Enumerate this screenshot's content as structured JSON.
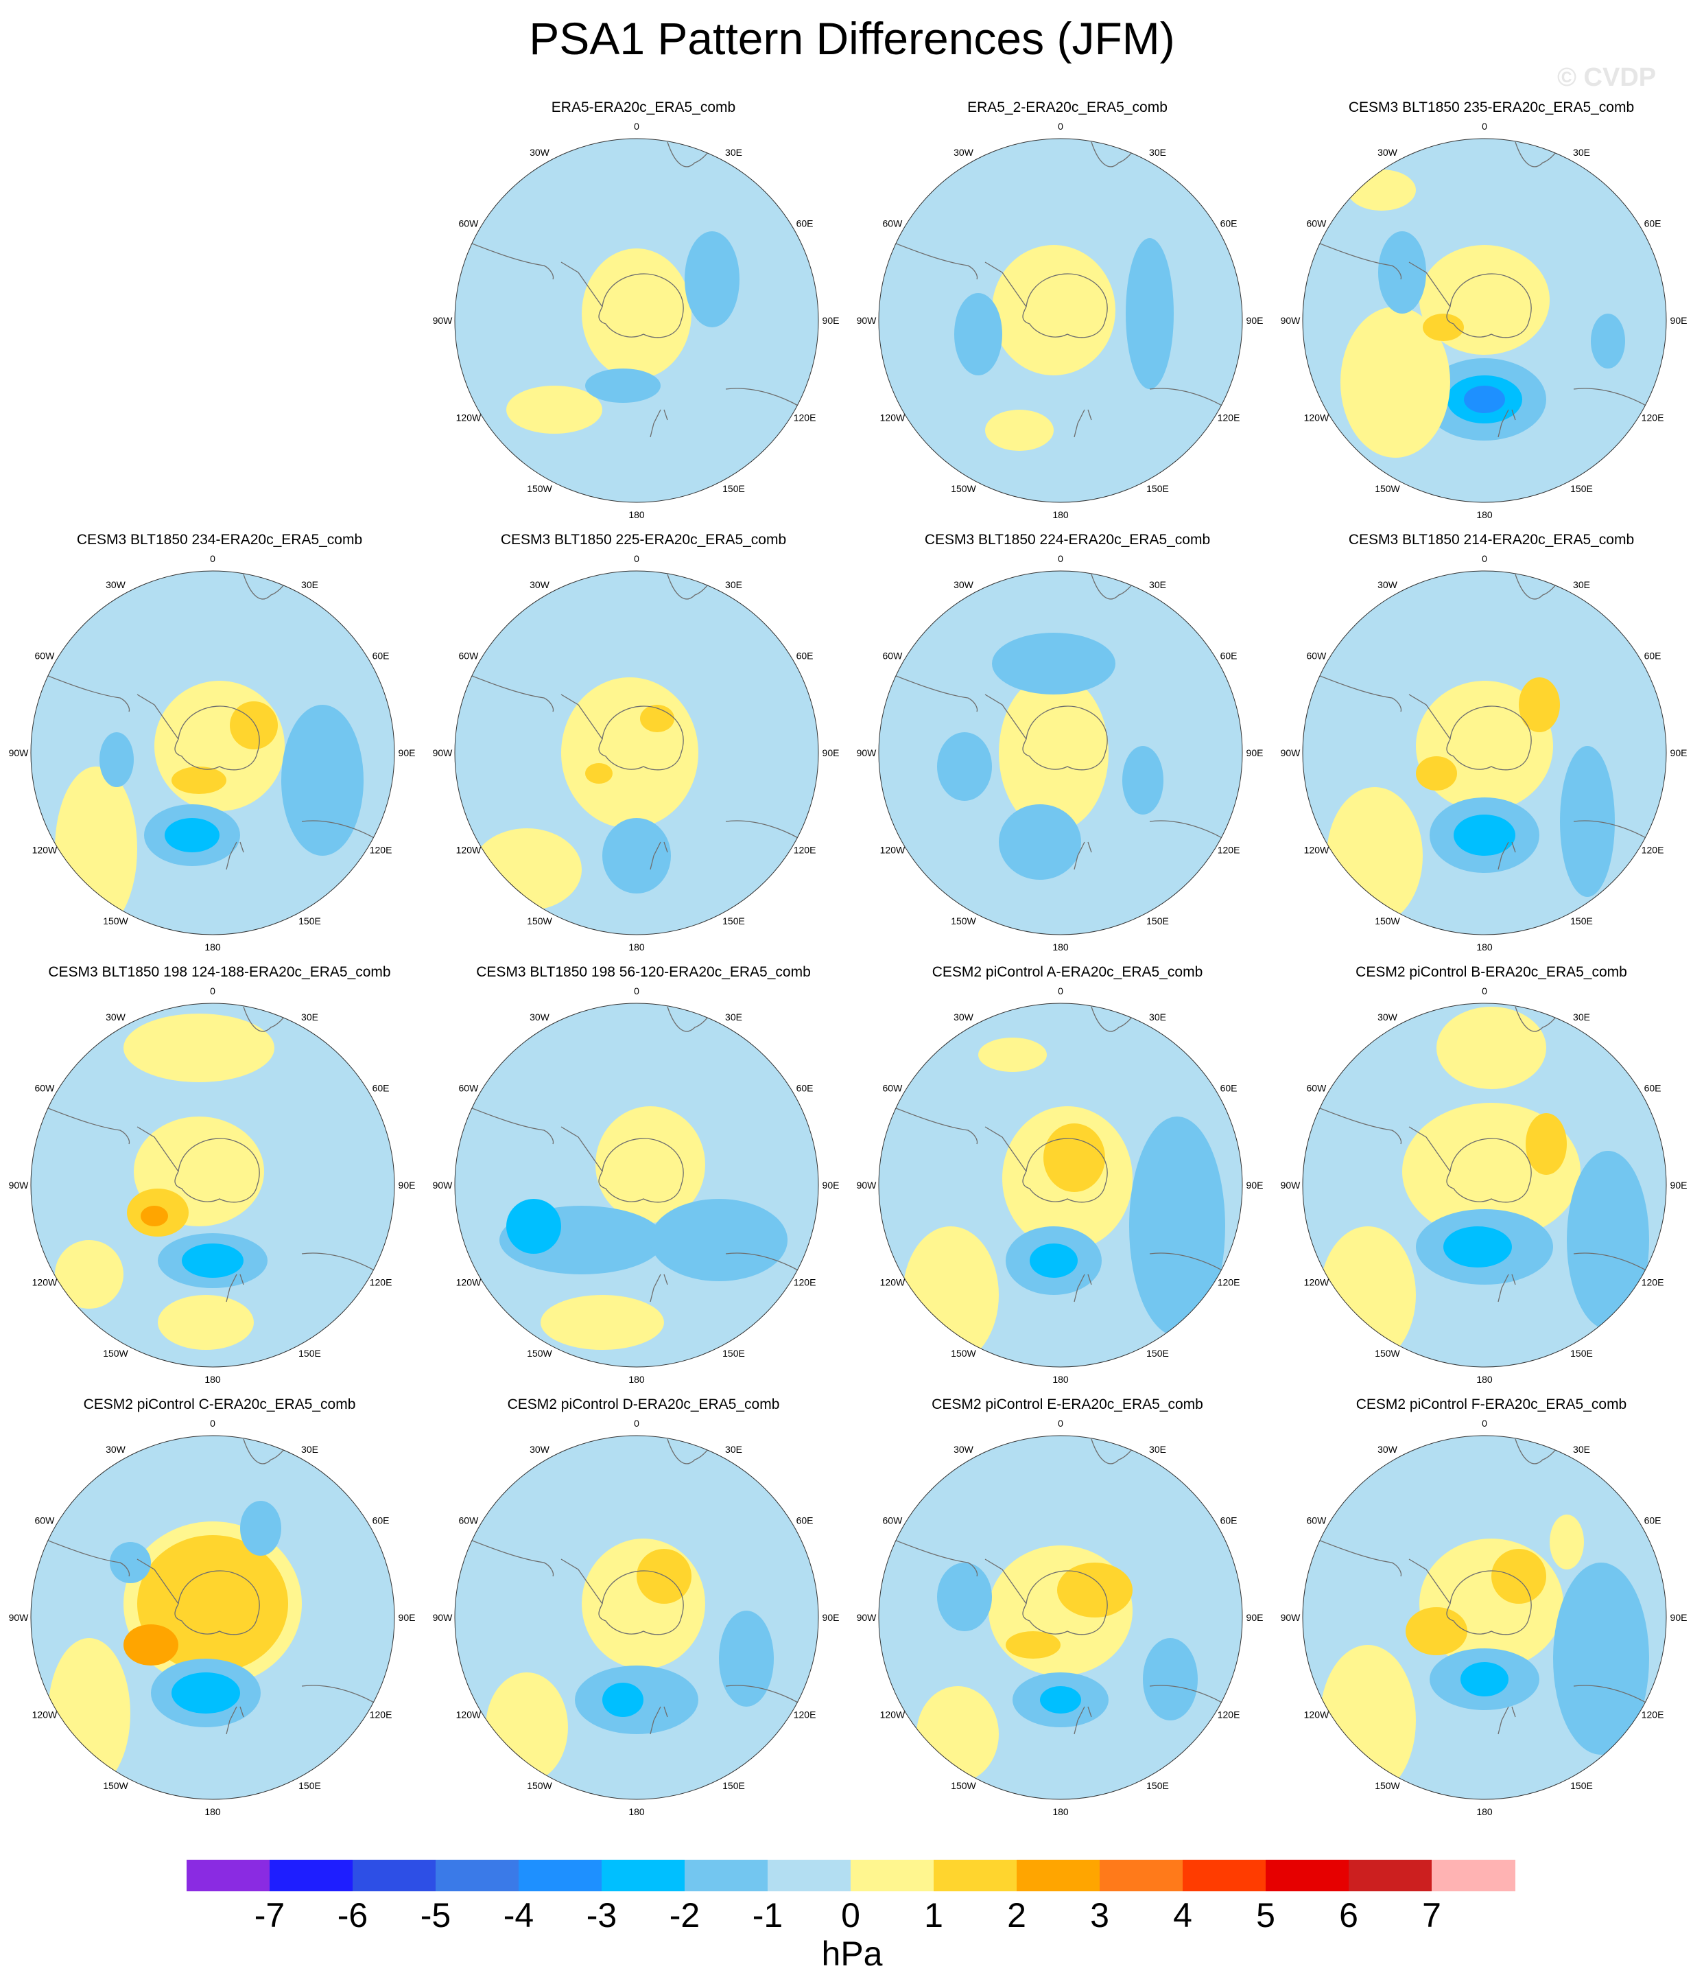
{
  "title": "PSA1 Pattern Differences (JFM)",
  "watermark": "© CVDP",
  "longitude_labels": [
    "0",
    "30E",
    "60E",
    "90E",
    "120E",
    "150E",
    "180",
    "150W",
    "120W",
    "90W",
    "60W",
    "30W"
  ],
  "panels": [
    {
      "title": "ERA5-ERA20c_ERA5_comb"
    },
    {
      "title": "ERA5_2-ERA20c_ERA5_comb"
    },
    {
      "title": "CESM3 BLT1850 235-ERA20c_ERA5_comb"
    },
    {
      "title": "CESM3 BLT1850 234-ERA20c_ERA5_comb"
    },
    {
      "title": "CESM3 BLT1850 225-ERA20c_ERA5_comb"
    },
    {
      "title": "CESM3 BLT1850 224-ERA20c_ERA5_comb"
    },
    {
      "title": "CESM3 BLT1850 214-ERA20c_ERA5_comb"
    },
    {
      "title": "CESM3 BLT1850 198 124-188-ERA20c_ERA5_comb"
    },
    {
      "title": "CESM3 BLT1850 198 56-120-ERA20c_ERA5_comb"
    },
    {
      "title": "CESM2 piControl A-ERA20c_ERA5_comb"
    },
    {
      "title": "CESM2 piControl B-ERA20c_ERA5_comb"
    },
    {
      "title": "CESM2 piControl C-ERA20c_ERA5_comb"
    },
    {
      "title": "CESM2 piControl D-ERA20c_ERA5_comb"
    },
    {
      "title": "CESM2 piControl E-ERA20c_ERA5_comb"
    },
    {
      "title": "CESM2 piControl F-ERA20c_ERA5_comb"
    }
  ],
  "colorbar": {
    "units": "hPa",
    "ticks": [
      "-7",
      "-6",
      "-5",
      "-4",
      "-3",
      "-2",
      "-1",
      "0",
      "1",
      "2",
      "3",
      "4",
      "5",
      "6",
      "7"
    ],
    "colors": [
      "#8a2be2",
      "#1e1eff",
      "#2d4fe6",
      "#3a7ae8",
      "#1e90ff",
      "#00bfff",
      "#73c6f0",
      "#b3def2",
      "#fff68f",
      "#ffd52e",
      "#ffa500",
      "#ff7a1a",
      "#ff3c00",
      "#e60000",
      "#cc1f1f",
      "#ffb3b3"
    ]
  }
}
